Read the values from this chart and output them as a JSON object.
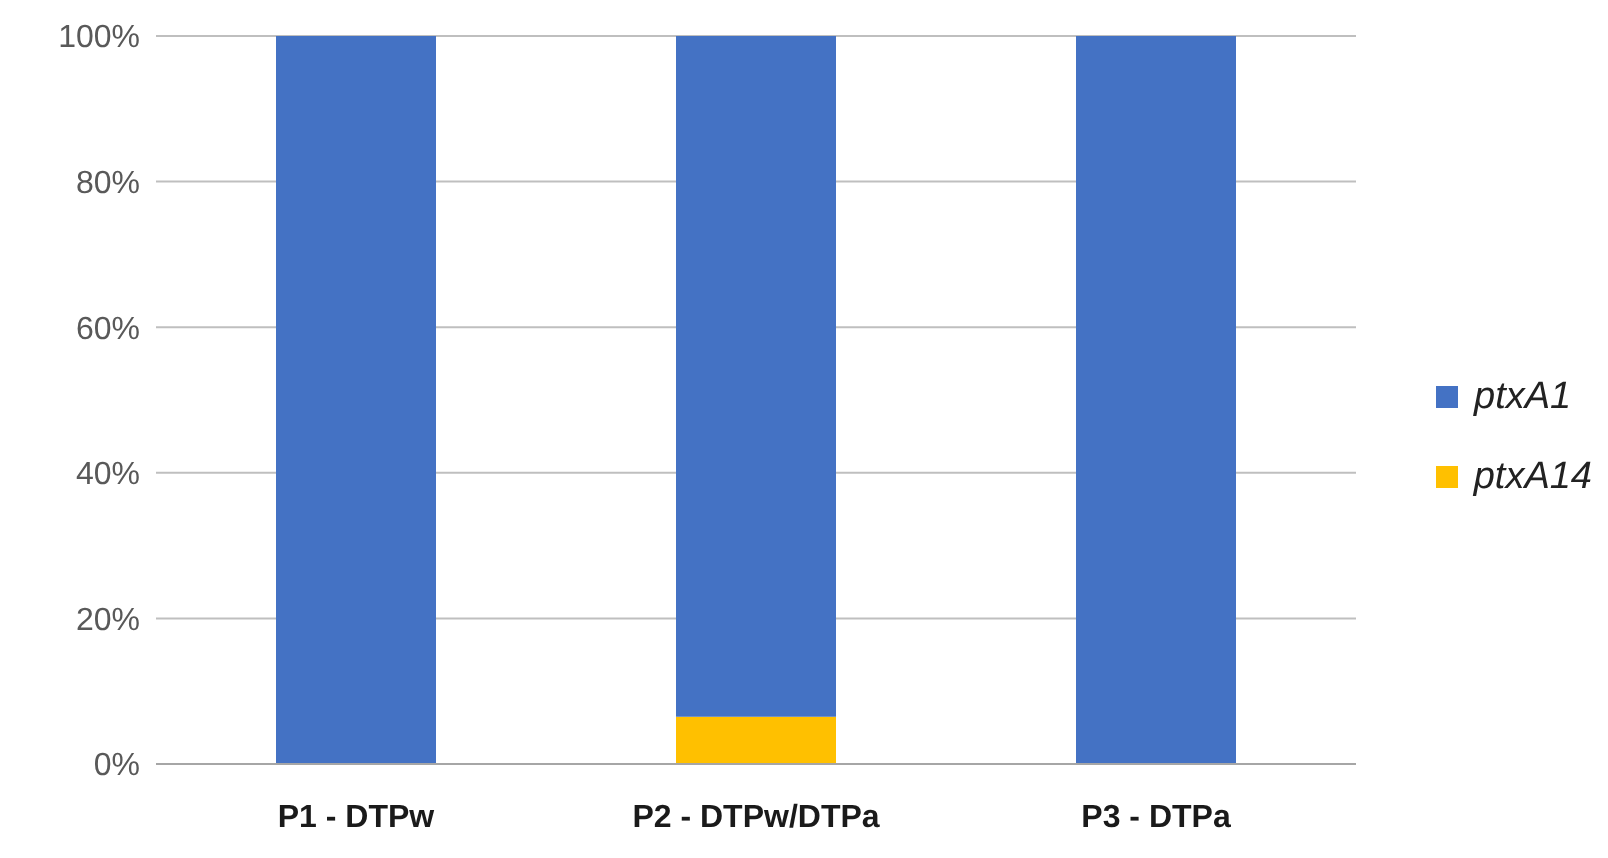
{
  "chart_data": {
    "type": "bar",
    "stacked": true,
    "categories": [
      "P1 - DTPw",
      "P2 - DTPw/DTPa",
      "P3 - DTPa"
    ],
    "series": [
      {
        "name": "ptxA14",
        "color": "#ffc000",
        "values": [
          0,
          6.5,
          0
        ]
      },
      {
        "name": "ptxA1",
        "color": "#4472c4",
        "values": [
          100,
          93.5,
          100
        ]
      }
    ],
    "ylim": [
      0,
      100
    ],
    "yticks": [
      {
        "value": 0,
        "label": "0%"
      },
      {
        "value": 20,
        "label": "20%"
      },
      {
        "value": 40,
        "label": "40%"
      },
      {
        "value": 60,
        "label": "60%"
      },
      {
        "value": 80,
        "label": "80%"
      },
      {
        "value": 100,
        "label": "100%"
      }
    ],
    "grid": "y",
    "legend": "right"
  }
}
